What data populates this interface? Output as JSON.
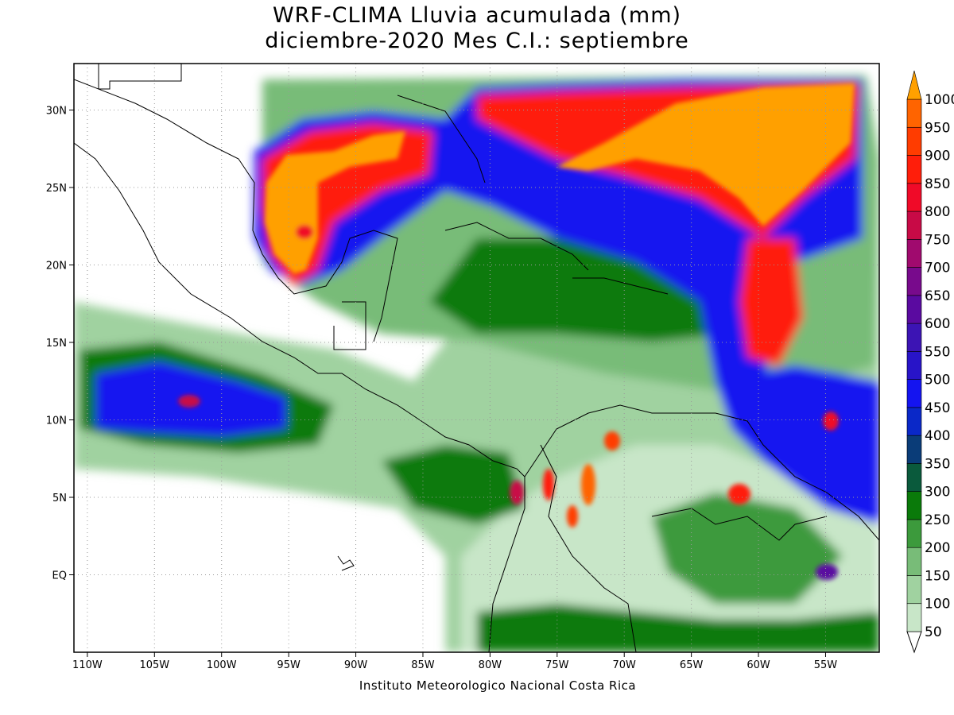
{
  "title_line1": "WRF-CLIMA Lluvia acumulada (mm)",
  "title_line2": "diciembre-2020 Mes C.I.: septiembre",
  "credit": "Instituto Meteorologico Nacional Costa Rica",
  "map": {
    "lon_range": [
      -111,
      -51
    ],
    "lat_range": [
      -5,
      33
    ],
    "lon_ticks": [
      {
        "v": -110,
        "label": "110W"
      },
      {
        "v": -105,
        "label": "105W"
      },
      {
        "v": -100,
        "label": "100W"
      },
      {
        "v": -95,
        "label": "95W"
      },
      {
        "v": -90,
        "label": "90W"
      },
      {
        "v": -85,
        "label": "85W"
      },
      {
        "v": -80,
        "label": "80W"
      },
      {
        "v": -75,
        "label": "75W"
      },
      {
        "v": -70,
        "label": "70W"
      },
      {
        "v": -65,
        "label": "65W"
      },
      {
        "v": -60,
        "label": "60W"
      },
      {
        "v": -55,
        "label": "55W"
      }
    ],
    "lat_ticks": [
      {
        "v": 30,
        "label": "30N"
      },
      {
        "v": 25,
        "label": "25N"
      },
      {
        "v": 20,
        "label": "20N"
      },
      {
        "v": 15,
        "label": "15N"
      },
      {
        "v": 10,
        "label": "10N"
      },
      {
        "v": 5,
        "label": "5N"
      },
      {
        "v": 0,
        "label": "EQ"
      }
    ],
    "grid": true
  },
  "colorbar": {
    "levels": [
      {
        "label": "50",
        "color": "#c8e6c8"
      },
      {
        "label": "100",
        "color": "#a0d2a0"
      },
      {
        "label": "150",
        "color": "#78bc78"
      },
      {
        "label": "200",
        "color": "#3c9a3c"
      },
      {
        "label": "250",
        "color": "#0a7a0a"
      },
      {
        "label": "300",
        "color": "#0a5a3c"
      },
      {
        "label": "350",
        "color": "#0a3c78"
      },
      {
        "label": "400",
        "color": "#0a28c8"
      },
      {
        "label": "450",
        "color": "#1414f0"
      },
      {
        "label": "500",
        "color": "#2814c8"
      },
      {
        "label": "550",
        "color": "#3c14b4"
      },
      {
        "label": "600",
        "color": "#5a0aa0"
      },
      {
        "label": "650",
        "color": "#780a8c"
      },
      {
        "label": "700",
        "color": "#a00a6e"
      },
      {
        "label": "750",
        "color": "#c80a46"
      },
      {
        "label": "800",
        "color": "#f00a28"
      },
      {
        "label": "850",
        "color": "#ff1e0a"
      },
      {
        "label": "900",
        "color": "#ff3c00"
      },
      {
        "label": "950",
        "color": "#ff6400"
      },
      {
        "label": "1000",
        "color": "#ffa000"
      }
    ]
  }
}
